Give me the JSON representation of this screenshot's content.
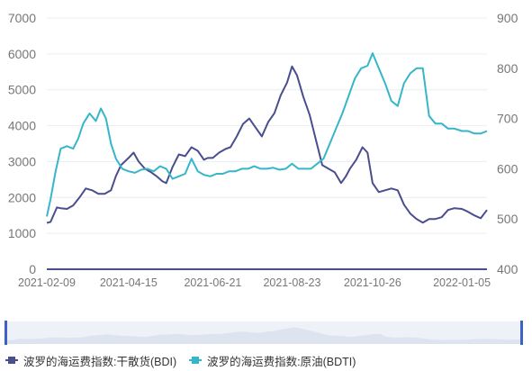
{
  "chart_data": {
    "type": "line",
    "x_ticks": [
      "2021-02-09",
      "2021-04-15",
      "2021-06-21",
      "2021-08-23",
      "2021-10-26",
      "2022-01-05"
    ],
    "y_left": {
      "ticks": [
        "0",
        "1000",
        "2000",
        "3000",
        "4000",
        "5000",
        "6000",
        "7000"
      ],
      "ylim": [
        0,
        7000
      ]
    },
    "y_right": {
      "ticks": [
        "400",
        "500",
        "600",
        "700",
        "800",
        "900"
      ],
      "ylim": [
        400,
        900
      ]
    },
    "grid": true,
    "legend_position": "bottom-left",
    "series": [
      {
        "name": "波罗的海运费指数:干散货(BDI)",
        "axis": "left",
        "color": "#4a4e8c",
        "x": [
          "2021-02-09",
          "2021-02-12",
          "2021-02-17",
          "2021-02-20",
          "2021-02-25",
          "2021-03-02",
          "2021-03-07",
          "2021-03-12",
          "2021-03-17",
          "2021-03-22",
          "2021-03-27",
          "2021-04-01",
          "2021-04-05",
          "2021-04-09",
          "2021-04-15",
          "2021-04-19",
          "2021-04-23",
          "2021-04-28",
          "2021-05-03",
          "2021-05-07",
          "2021-05-12",
          "2021-05-15",
          "2021-05-20",
          "2021-05-25",
          "2021-05-30",
          "2021-06-04",
          "2021-06-09",
          "2021-06-14",
          "2021-06-17",
          "2021-06-21",
          "2021-06-26",
          "2021-07-01",
          "2021-07-05",
          "2021-07-10",
          "2021-07-15",
          "2021-07-20",
          "2021-07-25",
          "2021-07-30",
          "2021-08-04",
          "2021-08-09",
          "2021-08-14",
          "2021-08-19",
          "2021-08-23",
          "2021-08-27",
          "2021-09-01",
          "2021-09-06",
          "2021-09-11",
          "2021-09-16",
          "2021-09-21",
          "2021-09-26",
          "2021-10-01",
          "2021-10-05",
          "2021-10-08",
          "2021-10-13",
          "2021-10-18",
          "2021-10-22",
          "2021-10-26",
          "2021-10-31",
          "2021-11-05",
          "2021-11-10",
          "2021-11-15",
          "2021-11-20",
          "2021-11-25",
          "2021-11-30",
          "2021-12-05",
          "2021-12-10",
          "2021-12-15",
          "2021-12-20",
          "2021-12-25",
          "2021-12-30",
          "2022-01-05",
          "2022-01-10",
          "2022-01-15",
          "2022-01-20",
          "2022-01-25"
        ],
        "values": [
          1290,
          1320,
          1720,
          1700,
          1680,
          1780,
          2000,
          2250,
          2200,
          2100,
          2100,
          2200,
          2600,
          2900,
          3100,
          3250,
          3000,
          2800,
          2700,
          2600,
          2450,
          2400,
          2850,
          3200,
          3150,
          3400,
          3300,
          3050,
          3100,
          3100,
          3250,
          3350,
          3400,
          3700,
          4050,
          4200,
          3950,
          3700,
          4100,
          4350,
          4850,
          5200,
          5650,
          5400,
          4800,
          4300,
          3600,
          2900,
          2800,
          2700,
          2400,
          2600,
          2800,
          3050,
          3400,
          3250,
          2400,
          2150,
          2200,
          2250,
          2200,
          1800,
          1550,
          1400,
          1300,
          1400,
          1400,
          1450,
          1650,
          1700,
          1680,
          1600,
          1500,
          1420,
          1650
        ]
      },
      {
        "name": "波罗的海运费指数:原油(BDTI)",
        "axis": "right",
        "color": "#35b6c9",
        "x": [
          "2021-02-09",
          "2021-02-12",
          "2021-02-16",
          "2021-02-20",
          "2021-02-25",
          "2021-03-02",
          "2021-03-06",
          "2021-03-10",
          "2021-03-15",
          "2021-03-20",
          "2021-03-24",
          "2021-03-28",
          "2021-04-01",
          "2021-04-05",
          "2021-04-10",
          "2021-04-15",
          "2021-04-20",
          "2021-04-25",
          "2021-04-30",
          "2021-05-05",
          "2021-05-10",
          "2021-05-15",
          "2021-05-20",
          "2021-05-25",
          "2021-05-30",
          "2021-06-04",
          "2021-06-09",
          "2021-06-14",
          "2021-06-19",
          "2021-06-24",
          "2021-06-29",
          "2021-07-04",
          "2021-07-09",
          "2021-07-14",
          "2021-07-19",
          "2021-07-24",
          "2021-07-29",
          "2021-08-03",
          "2021-08-08",
          "2021-08-13",
          "2021-08-18",
          "2021-08-23",
          "2021-08-28",
          "2021-09-02",
          "2021-09-07",
          "2021-09-12",
          "2021-09-17",
          "2021-09-22",
          "2021-09-27",
          "2021-10-02",
          "2021-10-07",
          "2021-10-12",
          "2021-10-17",
          "2021-10-22",
          "2021-10-26",
          "2021-10-31",
          "2021-11-05",
          "2021-11-10",
          "2021-11-15",
          "2021-11-20",
          "2021-11-25",
          "2021-11-30",
          "2021-12-05",
          "2021-12-10",
          "2021-12-15",
          "2021-12-20",
          "2021-12-25",
          "2021-12-30",
          "2022-01-05",
          "2022-01-10",
          "2022-01-15",
          "2022-01-20",
          "2022-01-25"
        ],
        "values": [
          505,
          540,
          595,
          640,
          645,
          640,
          660,
          690,
          710,
          695,
          720,
          700,
          650,
          620,
          600,
          595,
          592,
          598,
          600,
          595,
          605,
          600,
          580,
          585,
          590,
          620,
          595,
          588,
          585,
          590,
          590,
          595,
          595,
          600,
          600,
          605,
          600,
          600,
          602,
          598,
          600,
          610,
          600,
          600,
          600,
          610,
          620,
          650,
          680,
          710,
          745,
          780,
          800,
          805,
          830,
          800,
          770,
          735,
          725,
          770,
          790,
          800,
          800,
          705,
          690,
          690,
          680,
          680,
          675,
          675,
          670,
          670,
          675
        ]
      }
    ],
    "x_range": [
      "2021-02-09",
      "2022-01-25"
    ]
  }
}
